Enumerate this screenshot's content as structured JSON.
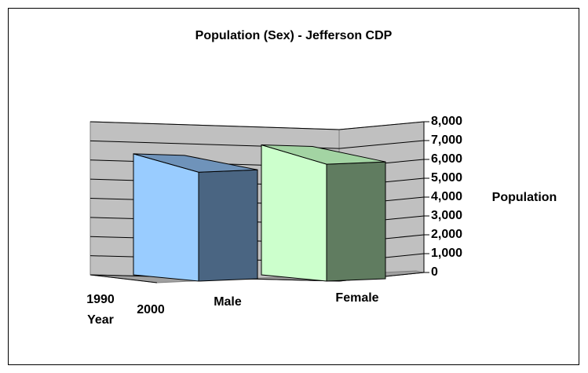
{
  "chart_data": {
    "type": "bar3d",
    "title": "Population (Sex) - Jefferson CDP",
    "y_label": "Population",
    "depth_label": "Year",
    "categories": [
      "Male",
      "Female"
    ],
    "series": [
      {
        "name": "1990",
        "color": "#99ccff",
        "values": [
          null,
          null
        ]
      },
      {
        "name": "2000",
        "colors": [
          "#99ccff",
          "#ccffcc"
        ],
        "side_colors": [
          "#4a6582",
          "#607c60"
        ],
        "top_colors": [
          "#6f93ba",
          "#a3d4a3"
        ],
        "values": [
          6800,
          7300
        ]
      }
    ],
    "ylim": [
      0,
      8000
    ],
    "yticks": [
      0,
      {
        "value": 1000,
        "label": "1,000"
      },
      {
        "value": 2000,
        "label": "2,000"
      },
      {
        "value": 3000,
        "label": "3,000"
      },
      {
        "value": 4000,
        "label": "4,000"
      },
      {
        "value": 5000,
        "label": "5,000"
      },
      {
        "value": 6000,
        "label": "6,000"
      },
      {
        "value": 7000,
        "label": "7,000"
      },
      {
        "value": 8000,
        "label": "8,000"
      }
    ],
    "grid": true
  }
}
